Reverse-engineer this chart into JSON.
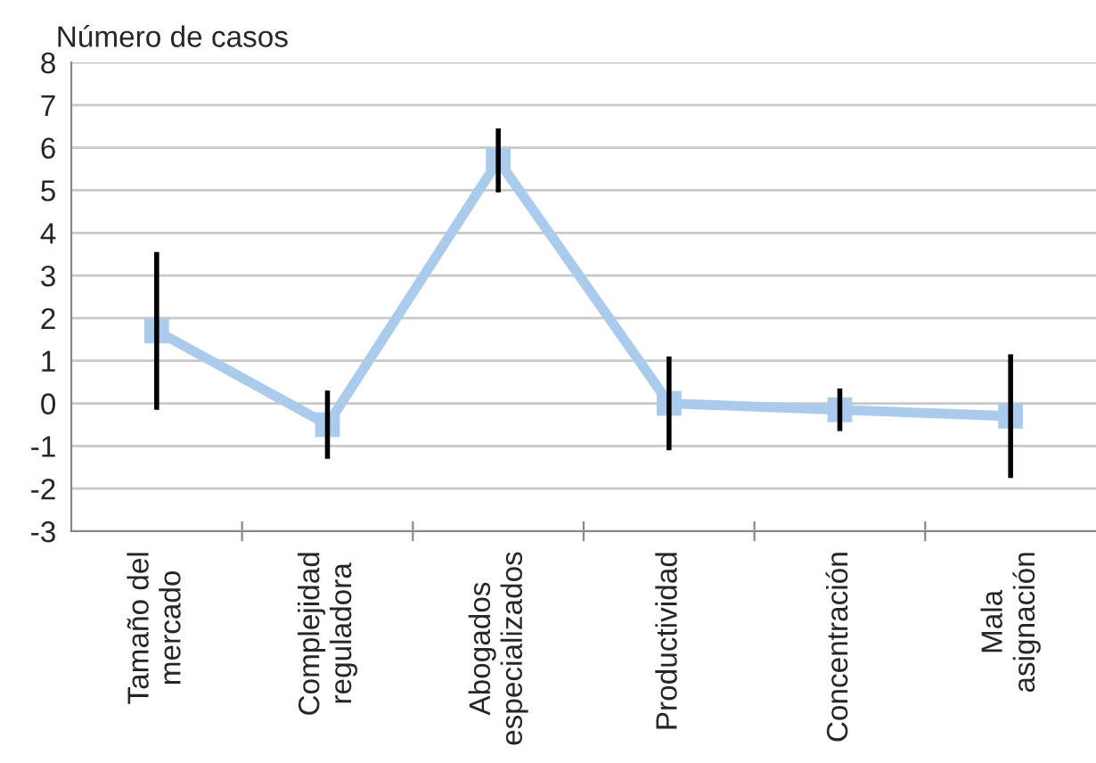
{
  "chart_data": {
    "type": "line",
    "ylabel": "Número de casos",
    "categories": [
      "Tamaño del\nmercado",
      "Complejidad\nreguladora",
      "Abogados\nespecializados",
      "Productividad",
      "Concentración",
      "Mala\nasignación"
    ],
    "series": [
      {
        "color": "#aacbec",
        "values": [
          1.7,
          -0.5,
          5.7,
          0.0,
          -0.15,
          -0.3
        ],
        "errors": [
          1.85,
          0.8,
          0.75,
          1.1,
          0.5,
          1.45
        ]
      }
    ],
    "ylim": [
      -3,
      8
    ],
    "yticks": [
      -3,
      -2,
      -1,
      0,
      1,
      2,
      3,
      4,
      5,
      6,
      7,
      8
    ],
    "grid": "y",
    "marker": "square",
    "line_style": "solid",
    "legend": false
  }
}
